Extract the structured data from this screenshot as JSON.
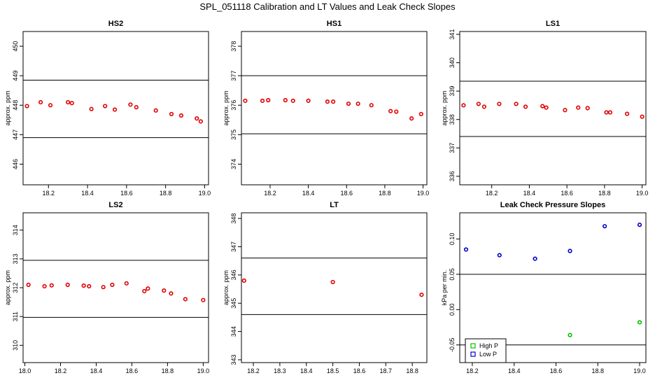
{
  "figure": {
    "title": "SPL_051118  Calibration and LT Values and Leak Check Slopes"
  },
  "chart_data": [
    {
      "id": "hs2",
      "type": "scatter",
      "title": "HS2",
      "ylabel": "approx. ppm",
      "xlim": [
        18.07,
        19.02
      ],
      "ylim": [
        445.3,
        450.5
      ],
      "xticks": [
        18.2,
        18.4,
        18.6,
        18.8,
        19.0
      ],
      "xtick_labels": [
        "18.2",
        "18.4",
        "18.6",
        "18.8",
        "19.0"
      ],
      "yticks": [
        446,
        447,
        448,
        449,
        450
      ],
      "ytick_labels": [
        "446",
        "447",
        "448",
        "449",
        "450"
      ],
      "hlines": [
        446.9,
        448.85
      ],
      "series": [
        {
          "color": "#e00000",
          "marker": "circle",
          "x": [
            18.09,
            18.16,
            18.21,
            18.3,
            18.32,
            18.42,
            18.49,
            18.54,
            18.62,
            18.65,
            18.75,
            18.83,
            18.88,
            18.96,
            18.98
          ],
          "y": [
            447.97,
            448.1,
            448.0,
            448.1,
            448.07,
            447.87,
            447.97,
            447.85,
            448.02,
            447.93,
            447.82,
            447.7,
            447.65,
            447.55,
            447.45
          ]
        }
      ]
    },
    {
      "id": "hs1",
      "type": "scatter",
      "title": "HS1",
      "ylabel": "approx. ppm",
      "xlim": [
        18.05,
        19.02
      ],
      "ylim": [
        373.3,
        378.5
      ],
      "xticks": [
        18.2,
        18.4,
        18.6,
        18.8,
        19.0
      ],
      "xtick_labels": [
        "18.2",
        "18.4",
        "18.6",
        "18.8",
        "19.0"
      ],
      "yticks": [
        374,
        375,
        376,
        377,
        378
      ],
      "ytick_labels": [
        "374",
        "375",
        "376",
        "377",
        "378"
      ],
      "hlines": [
        375.03,
        377.0
      ],
      "series": [
        {
          "color": "#e00000",
          "marker": "circle",
          "x": [
            18.07,
            18.16,
            18.19,
            18.28,
            18.32,
            18.4,
            18.5,
            18.53,
            18.61,
            18.66,
            18.73,
            18.83,
            18.86,
            18.94,
            18.99
          ],
          "y": [
            376.15,
            376.15,
            376.17,
            376.17,
            376.15,
            376.15,
            376.12,
            376.12,
            376.05,
            376.05,
            376.0,
            375.8,
            375.78,
            375.55,
            375.7
          ]
        }
      ]
    },
    {
      "id": "ls1",
      "type": "scatter",
      "title": "LS1",
      "ylabel": "approx. ppm",
      "xlim": [
        18.03,
        19.02
      ],
      "ylim": [
        335.7,
        341.1
      ],
      "xticks": [
        18.2,
        18.4,
        18.6,
        18.8,
        19.0
      ],
      "xtick_labels": [
        "18.2",
        "18.4",
        "18.6",
        "18.8",
        "19.0"
      ],
      "yticks": [
        336,
        337,
        338,
        339,
        340,
        341
      ],
      "ytick_labels": [
        "336",
        "337",
        "338",
        "339",
        "340",
        "341"
      ],
      "hlines": [
        337.4,
        339.35
      ],
      "series": [
        {
          "color": "#e00000",
          "marker": "circle",
          "x": [
            18.05,
            18.13,
            18.16,
            18.24,
            18.33,
            18.38,
            18.47,
            18.49,
            18.59,
            18.66,
            18.71,
            18.81,
            18.83,
            18.92,
            19.0
          ],
          "y": [
            338.5,
            338.55,
            338.45,
            338.55,
            338.55,
            338.45,
            338.47,
            338.42,
            338.33,
            338.42,
            338.4,
            338.25,
            338.25,
            338.2,
            338.1
          ]
        }
      ]
    },
    {
      "id": "ls2",
      "type": "scatter",
      "title": "LS2",
      "ylabel": "approx. ppm",
      "xlim": [
        17.99,
        19.03
      ],
      "ylim": [
        309.4,
        314.6
      ],
      "xticks": [
        18.0,
        18.2,
        18.4,
        18.6,
        18.8,
        19.0
      ],
      "xtick_labels": [
        "18.0",
        "18.2",
        "18.4",
        "18.6",
        "18.8",
        "19.0"
      ],
      "yticks": [
        310,
        311,
        312,
        313,
        314
      ],
      "ytick_labels": [
        "310",
        "311",
        "312",
        "313",
        "314"
      ],
      "hlines": [
        310.97,
        312.95
      ],
      "series": [
        {
          "color": "#e00000",
          "marker": "circle",
          "x": [
            18.02,
            18.11,
            18.15,
            18.24,
            18.33,
            18.36,
            18.44,
            18.49,
            18.57,
            18.67,
            18.69,
            18.78,
            18.82,
            18.9,
            19.0
          ],
          "y": [
            312.1,
            312.05,
            312.08,
            312.1,
            312.07,
            312.05,
            312.02,
            312.1,
            312.15,
            311.88,
            311.97,
            311.9,
            311.8,
            311.6,
            311.57
          ]
        }
      ]
    },
    {
      "id": "lt",
      "type": "scatter",
      "title": "LT",
      "ylabel": "approx. ppm",
      "xlim": [
        18.155,
        18.855
      ],
      "ylim": [
        342.9,
        348.2
      ],
      "xticks": [
        18.2,
        18.3,
        18.4,
        18.5,
        18.6,
        18.7,
        18.8
      ],
      "xtick_labels": [
        "18.2",
        "18.3",
        "18.4",
        "18.5",
        "18.6",
        "18.7",
        "18.8"
      ],
      "yticks": [
        343,
        344,
        345,
        346,
        347,
        348
      ],
      "ytick_labels": [
        "343",
        "344",
        "345",
        "346",
        "347",
        "348"
      ],
      "hlines": [
        344.6,
        346.6
      ],
      "series": [
        {
          "color": "#e00000",
          "marker": "circle",
          "x": [
            18.165,
            18.5,
            18.835
          ],
          "y": [
            345.8,
            345.75,
            345.3
          ]
        }
      ]
    },
    {
      "id": "leak",
      "type": "scatter",
      "title": "Leak Check Pressure Slopes",
      "ylabel": "kPa per min.",
      "xlim": [
        18.14,
        19.03
      ],
      "ylim": [
        -0.075,
        0.137
      ],
      "xticks": [
        18.2,
        18.4,
        18.6,
        18.8,
        19.0
      ],
      "xtick_labels": [
        "18.2",
        "18.4",
        "18.6",
        "18.8",
        "19.0"
      ],
      "yticks": [
        -0.05,
        0.0,
        0.05,
        0.1
      ],
      "ytick_labels": [
        "-0.05",
        "0.00",
        "0.05",
        "0.10"
      ],
      "hlines": [
        0.05,
        -0.05
      ],
      "series": [
        {
          "name": "High P",
          "color": "#00c000",
          "marker": "circle",
          "x": [
            18.33,
            18.667,
            19.0
          ],
          "y": [
            -0.045,
            -0.036,
            -0.018
          ]
        },
        {
          "name": "Low P",
          "color": "#0000c8",
          "marker": "circle",
          "x": [
            18.17,
            18.33,
            18.5,
            18.667,
            18.833,
            19.0
          ],
          "y": [
            0.085,
            0.077,
            0.072,
            0.083,
            0.118,
            0.12
          ]
        }
      ],
      "legend": {
        "position": "bottom-left",
        "marker": "square"
      }
    }
  ]
}
